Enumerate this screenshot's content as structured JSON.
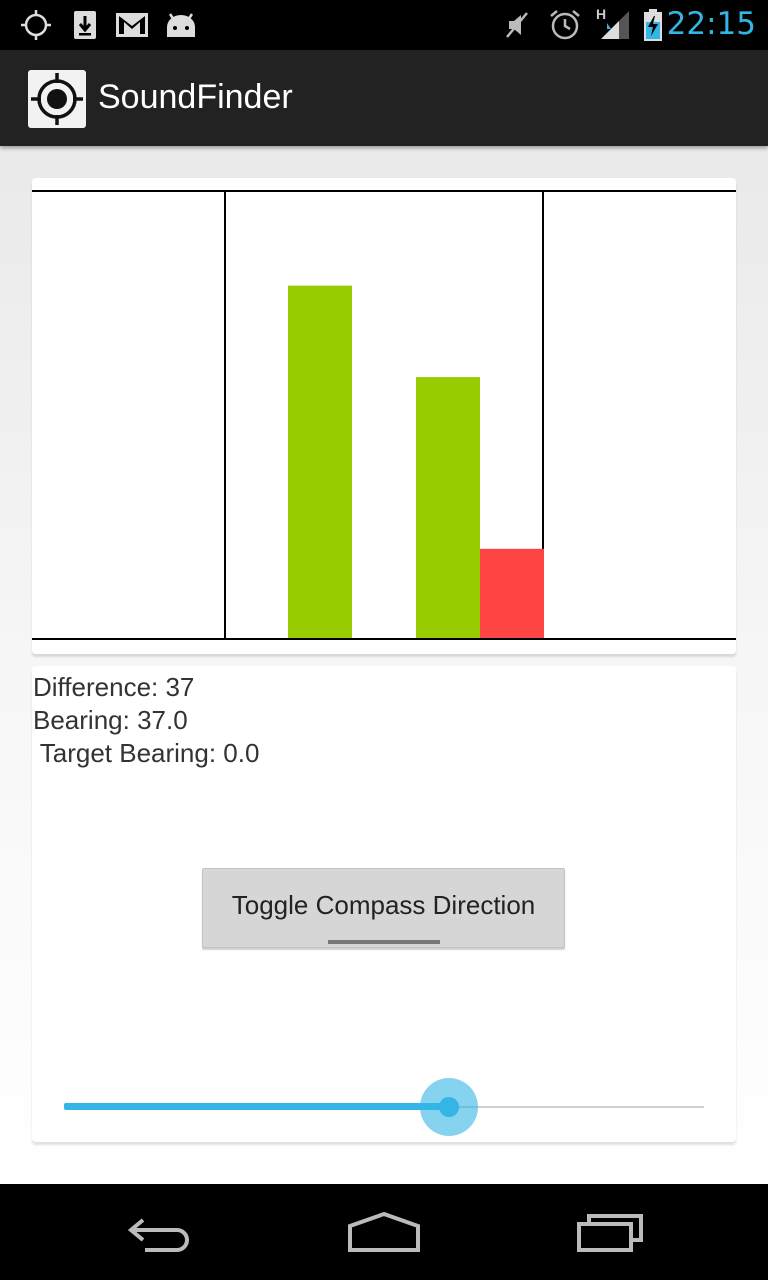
{
  "status_bar": {
    "icons_left": [
      "gps-icon",
      "download-icon",
      "gmail-icon",
      "android-icon"
    ],
    "icons_right": [
      "mute-icon",
      "alarm-icon",
      "signal-icon",
      "battery-icon"
    ],
    "network_label": "H",
    "time": "22:15"
  },
  "action_bar": {
    "app_icon": "crosshair-icon",
    "title": "SoundFinder"
  },
  "chart_data": {
    "type": "bar",
    "categories": [
      "bar1",
      "bar2",
      "bar3"
    ],
    "values": [
      0.79,
      0.585,
      0.2
    ],
    "colors": [
      "#99cc00",
      "#99cc00",
      "#ff4444"
    ],
    "ylim": [
      0,
      1
    ],
    "grid": false
  },
  "info": {
    "difference": "Difference: 37",
    "bearing": "Bearing: 37.0",
    "target_bearing": " Target Bearing: 0.0"
  },
  "toggle_button": {
    "label": "Toggle Compass Direction"
  },
  "seekbar": {
    "value_fraction": 0.602
  },
  "nav_bar": {
    "icons": [
      "back-icon",
      "home-icon",
      "recents-icon"
    ]
  },
  "colors": {
    "accent": "#33b5e5",
    "bar_green": "#99cc00",
    "bar_red": "#ff4444"
  }
}
